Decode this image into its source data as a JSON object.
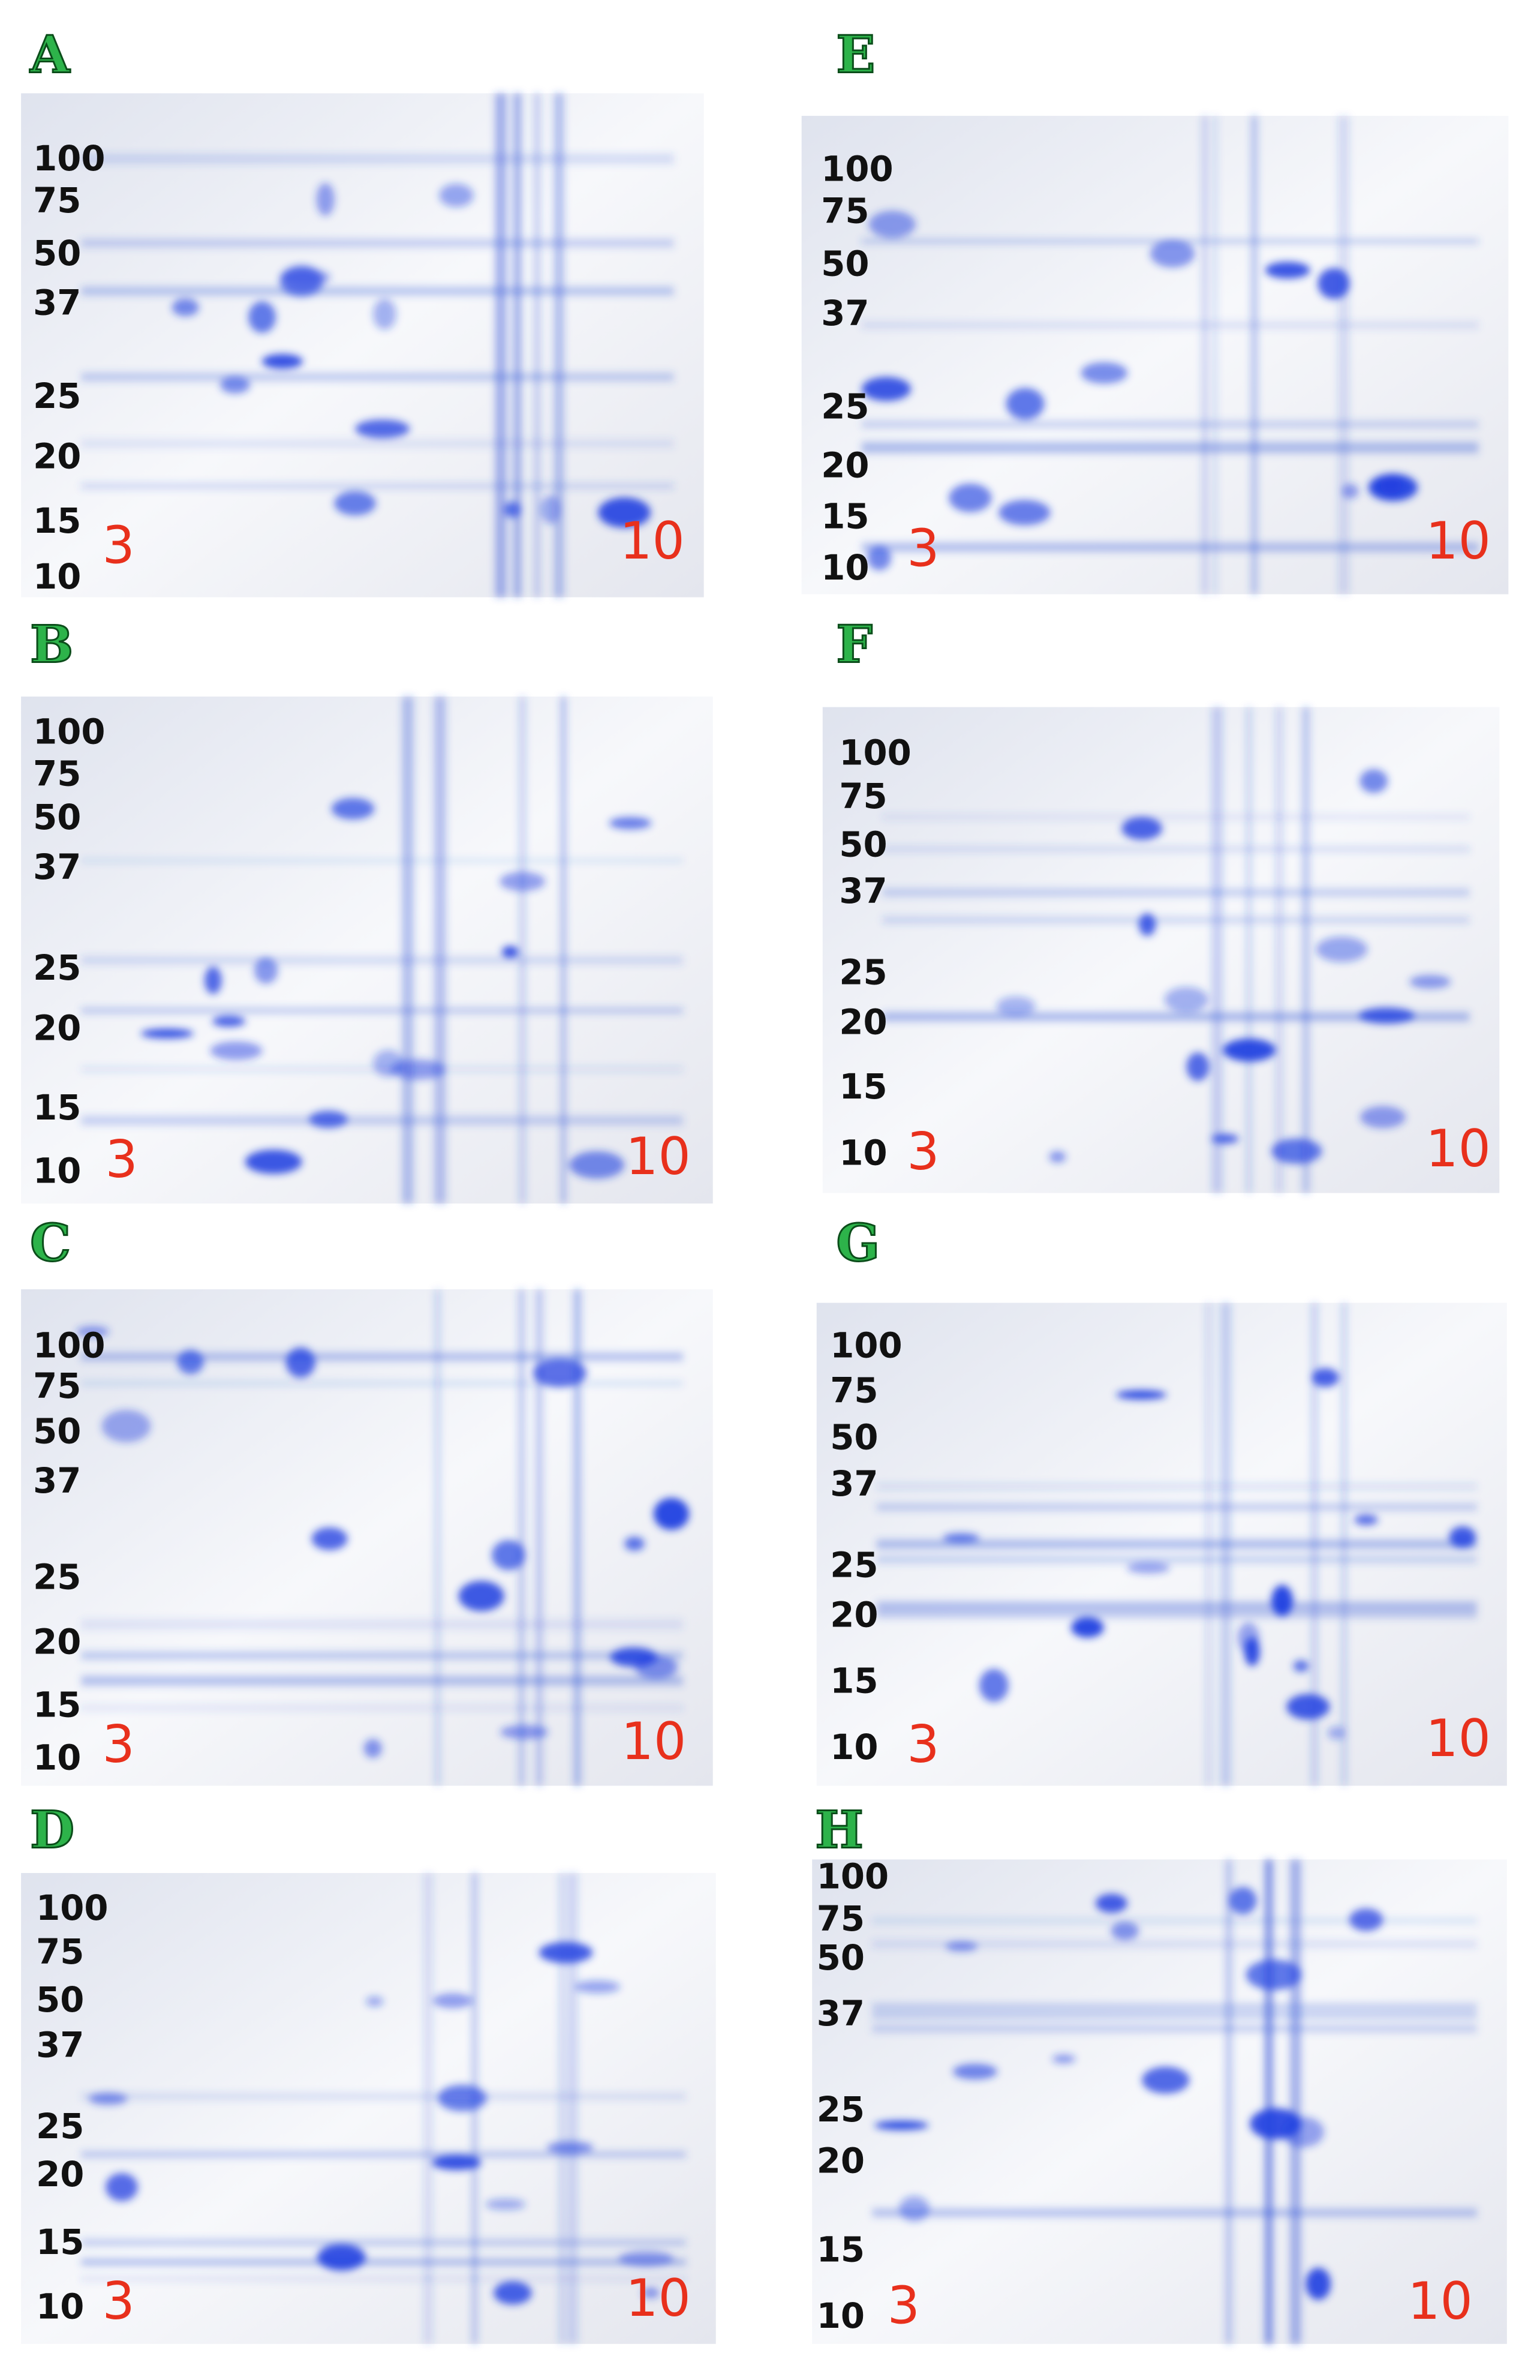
{
  "panels": [
    {
      "letter": "A",
      "mw_labels": [
        "100",
        "75",
        "50",
        "37",
        "25",
        "20",
        "15",
        "10"
      ],
      "ph_low": "3",
      "ph_high": "10"
    },
    {
      "letter": "B",
      "mw_labels": [
        "100",
        "75",
        "50",
        "37",
        "25",
        "20",
        "15",
        "10"
      ],
      "ph_low": "3",
      "ph_high": "10"
    },
    {
      "letter": "C",
      "mw_labels": [
        "100",
        "75",
        "50",
        "37",
        "25",
        "20",
        "15",
        "10"
      ],
      "ph_low": "3",
      "ph_high": "10"
    },
    {
      "letter": "D",
      "mw_labels": [
        "100",
        "75",
        "50",
        "37",
        "25",
        "20",
        "15",
        "10"
      ],
      "ph_low": "3",
      "ph_high": "10"
    },
    {
      "letter": "E",
      "mw_labels": [
        "100",
        "75",
        "50",
        "37",
        "25",
        "20",
        "15",
        "10"
      ],
      "ph_low": "3",
      "ph_high": "10"
    },
    {
      "letter": "F",
      "mw_labels": [
        "100",
        "75",
        "50",
        "37",
        "25",
        "20",
        "15",
        "10"
      ],
      "ph_low": "3",
      "ph_high": "10"
    },
    {
      "letter": "G",
      "mw_labels": [
        "100",
        "75",
        "50",
        "37",
        "25",
        "20",
        "15",
        "10"
      ],
      "ph_low": "3",
      "ph_high": "10"
    },
    {
      "letter": "H",
      "mw_labels": [
        "100",
        "75",
        "50",
        "37",
        "25",
        "20",
        "15",
        "10"
      ],
      "ph_low": "3",
      "ph_high": "10"
    }
  ]
}
